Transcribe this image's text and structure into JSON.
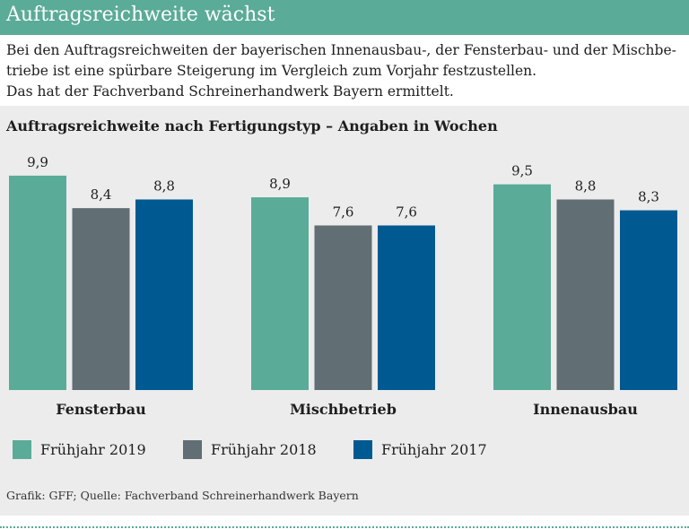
{
  "header": {
    "title": "Auftragsreichweite wächst"
  },
  "intro": {
    "lines": [
      "Bei den Auftragsreichweiten der bayerischen Innenausbau-, der Fensterbau- und der Mischbe-",
      "triebe ist eine spürbare Steigerung im Vergleich zum Vorjahr festzustellen.",
      "Das hat der Fachverband Schreinerhandwerk Bayern ermittelt."
    ]
  },
  "source": "Grafik: GFF; Quelle: Fachverband Schreinerhandwerk Bayern",
  "chart_data": {
    "type": "bar",
    "title": "Auftragsreichweite nach Fertigungstyp – Angaben in Wochen",
    "categories": [
      "Fensterbau",
      "Mischbetrieb",
      "Innenausbau"
    ],
    "series": [
      {
        "name": "Frühjahr 2019",
        "color": "#5aab98",
        "values": [
          9.9,
          8.9,
          9.5
        ],
        "labels": [
          "9,9",
          "8,9",
          "9,5"
        ]
      },
      {
        "name": "Frühjahr 2018",
        "color": "#616e74",
        "values": [
          8.4,
          7.6,
          8.8
        ],
        "labels": [
          "8,4",
          "7,6",
          "8,8"
        ]
      },
      {
        "name": "Frühjahr 2017",
        "color": "#005a92",
        "values": [
          8.8,
          7.6,
          8.3
        ],
        "labels": [
          "8,8",
          "7,6",
          "8,3"
        ]
      }
    ],
    "ylim": [
      0,
      10
    ],
    "grid": false,
    "legend": "bottom"
  }
}
